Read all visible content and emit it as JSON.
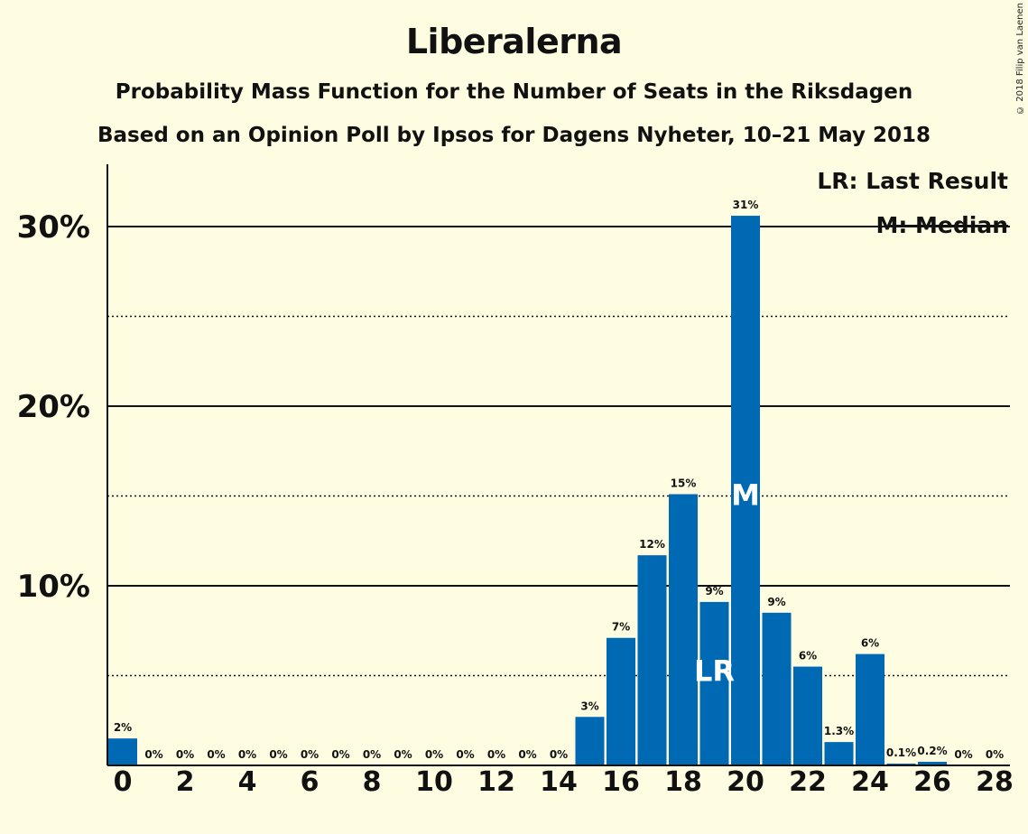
{
  "header": {
    "title": "Liberalerna",
    "subtitle": "Probability Mass Function for the Number of Seats in the Riksdagen",
    "source": "Based on an Opinion Poll by Ipsos for Dagens Nyheter, 10–21 May 2018",
    "copyright": "© 2018 Filip van Laenen"
  },
  "legend": {
    "last_result": "LR: Last Result",
    "median": "M: Median",
    "lr_marker": "LR",
    "median_marker": "M"
  },
  "colors": {
    "bar": "#0069b4",
    "background": "#fffde1",
    "text": "#111111"
  },
  "chart_data": {
    "type": "bar",
    "x": [
      0,
      1,
      2,
      3,
      4,
      5,
      6,
      7,
      8,
      9,
      10,
      11,
      12,
      13,
      14,
      15,
      16,
      17,
      18,
      19,
      20,
      21,
      22,
      23,
      24,
      25,
      26,
      27,
      28
    ],
    "values": [
      1.5,
      0,
      0,
      0,
      0,
      0,
      0,
      0,
      0,
      0,
      0,
      0,
      0,
      0,
      0,
      2.7,
      7.1,
      11.7,
      15.1,
      9.1,
      30.6,
      8.5,
      5.5,
      1.3,
      6.2,
      0.1,
      0.2,
      0,
      0
    ],
    "labels": [
      "2%",
      "0%",
      "0%",
      "0%",
      "0%",
      "0%",
      "0%",
      "0%",
      "0%",
      "0%",
      "0%",
      "0%",
      "0%",
      "0%",
      "0%",
      "3%",
      "7%",
      "12%",
      "15%",
      "9%",
      "31%",
      "9%",
      "6%",
      "1.3%",
      "6%",
      "0.1%",
      "0.2%",
      "0%",
      "0%"
    ],
    "xticks": [
      "0",
      "2",
      "4",
      "6",
      "8",
      "10",
      "12",
      "14",
      "16",
      "18",
      "20",
      "22",
      "24",
      "26",
      "28"
    ],
    "yticks": [
      "10%",
      "20%",
      "30%"
    ],
    "ylim": [
      0,
      33
    ],
    "last_result_seat": 19,
    "median_seat": 20,
    "grid": "solid at 10% steps, dotted at 5% steps",
    "legend_position": "top-right"
  }
}
